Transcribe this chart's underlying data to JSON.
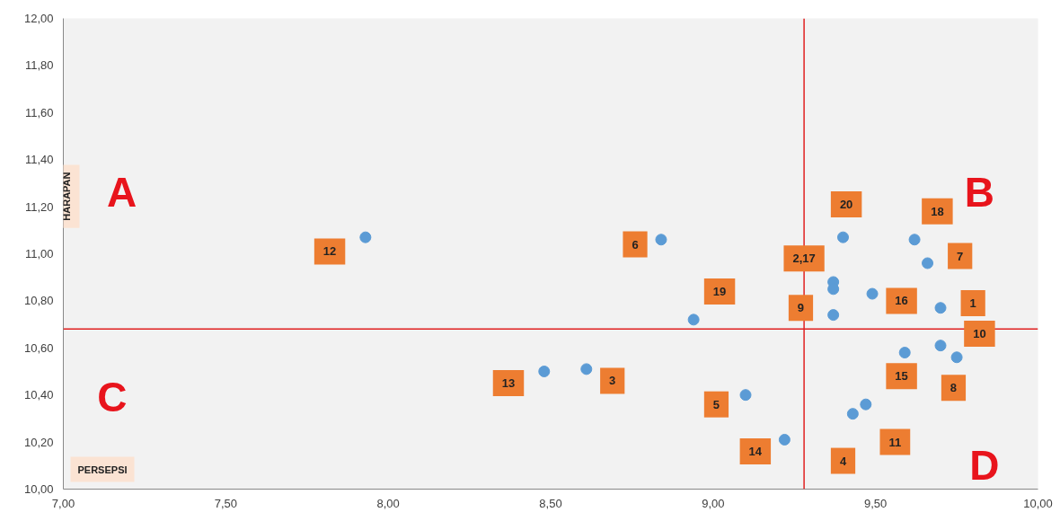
{
  "chart_data": {
    "type": "scatter",
    "xlabel": "PERSEPSI",
    "ylabel": "HARAPAN",
    "x": [
      9.4,
      9.62,
      9.66,
      9.37,
      9.37,
      9.49,
      9.37,
      9.7,
      9.7,
      9.59,
      9.75,
      9.47,
      9.43,
      9.22,
      7.93,
      8.84,
      8.94,
      8.48,
      8.61,
      9.1
    ],
    "series": [
      {
        "color": "#5b9bd5",
        "values": [
          11.07,
          11.06,
          10.96,
          10.88,
          10.85,
          10.83,
          10.74,
          10.77,
          10.61,
          10.58,
          10.56,
          10.36,
          10.32,
          10.21,
          11.07,
          11.06,
          10.72,
          10.5,
          10.51,
          10.4
        ]
      }
    ],
    "marker": "circle",
    "grid": false,
    "xlim": [
      7.0,
      10.0
    ],
    "xticks": [
      {
        "value": 7.0,
        "label": "7,00"
      },
      {
        "value": 7.5,
        "label": "7,50"
      },
      {
        "value": 8.0,
        "label": "8,00"
      },
      {
        "value": 8.5,
        "label": "8,50"
      },
      {
        "value": 9.0,
        "label": "9,00"
      },
      {
        "value": 9.5,
        "label": "9,50"
      },
      {
        "value": 10.0,
        "label": "10,00"
      }
    ],
    "ylim": [
      10.0,
      12.0
    ],
    "yticks": [
      {
        "value": 10.0,
        "label": "10,00"
      },
      {
        "value": 10.2,
        "label": "10,20"
      },
      {
        "value": 10.4,
        "label": "10,40"
      },
      {
        "value": 10.6,
        "label": "10,60"
      },
      {
        "value": 10.8,
        "label": "10,80"
      },
      {
        "value": 11.0,
        "label": "11,00"
      },
      {
        "value": 11.2,
        "label": "11,20"
      },
      {
        "value": 11.4,
        "label": "11,40"
      },
      {
        "value": 11.6,
        "label": "11,60"
      },
      {
        "value": 11.8,
        "label": "11,80"
      },
      {
        "value": 12.0,
        "label": "12,00"
      }
    ],
    "ref_lines": [
      {
        "axis": "x",
        "value": 9.28,
        "color": "#e02020"
      },
      {
        "axis": "y",
        "value": 10.68,
        "color": "#e02020"
      }
    ],
    "annotations": [
      {
        "text": "20",
        "x": 9.41,
        "y": 11.21
      },
      {
        "text": "18",
        "x": 9.69,
        "y": 11.18
      },
      {
        "text": "7",
        "x": 9.76,
        "y": 10.99
      },
      {
        "text": "2,17",
        "x": 9.28,
        "y": 10.98
      },
      {
        "text": "16",
        "x": 9.58,
        "y": 10.8
      },
      {
        "text": "9",
        "x": 9.27,
        "y": 10.77
      },
      {
        "text": "1",
        "x": 9.8,
        "y": 10.79
      },
      {
        "text": "10",
        "x": 9.82,
        "y": 10.66
      },
      {
        "text": "15",
        "x": 9.58,
        "y": 10.48
      },
      {
        "text": "8",
        "x": 9.74,
        "y": 10.43
      },
      {
        "text": "11",
        "x": 9.56,
        "y": 10.2
      },
      {
        "text": "4",
        "x": 9.4,
        "y": 10.12
      },
      {
        "text": "14",
        "x": 9.13,
        "y": 10.16
      },
      {
        "text": "12",
        "x": 7.82,
        "y": 11.01
      },
      {
        "text": "6",
        "x": 8.76,
        "y": 11.04
      },
      {
        "text": "19",
        "x": 9.02,
        "y": 10.84
      },
      {
        "text": "13",
        "x": 8.37,
        "y": 10.45
      },
      {
        "text": "3",
        "x": 8.69,
        "y": 10.46
      },
      {
        "text": "5",
        "x": 9.01,
        "y": 10.36
      },
      "A",
      "B",
      "C",
      "D"
    ]
  }
}
